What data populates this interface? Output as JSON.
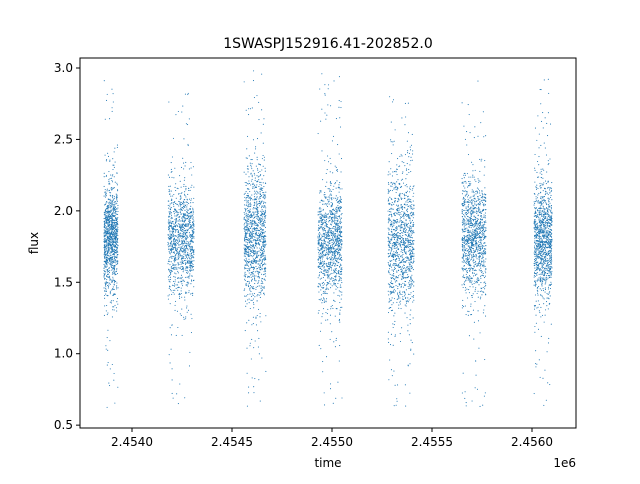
{
  "chart_data": {
    "type": "scatter",
    "title": "1SWASPJ152916.41-202852.0",
    "xlabel": "time",
    "ylabel": "flux",
    "x_offset_label": "1e6",
    "xlim": [
      2.45374,
      2.45622
    ],
    "ylim": [
      0.48,
      3.07
    ],
    "x_ticks": [
      2.454,
      2.4545,
      2.455,
      2.4555,
      2.456
    ],
    "x_tick_labels": [
      "2.4540",
      "2.4545",
      "2.4550",
      "2.4555",
      "2.4560"
    ],
    "y_ticks": [
      0.5,
      1.0,
      1.5,
      2.0,
      2.5,
      3.0
    ],
    "y_tick_labels": [
      "0.5",
      "1.0",
      "1.5",
      "2.0",
      "2.5",
      "3.0"
    ],
    "grid": false,
    "color": "#1f77b4",
    "series": [
      {
        "clusters": [
          {
            "x_range": [
              2.45386,
              2.45393
            ],
            "y_core": [
              1.5,
              2.1
            ],
            "y_range": [
              0.62,
              2.98
            ]
          },
          {
            "x_range": [
              2.45418,
              2.45431
            ],
            "y_core": [
              1.5,
              2.1
            ],
            "y_range": [
              0.65,
              2.85
            ]
          },
          {
            "x_range": [
              2.45456,
              2.45467
            ],
            "y_core": [
              1.45,
              2.2
            ],
            "y_range": [
              0.63,
              2.98
            ]
          },
          {
            "x_range": [
              2.45493,
              2.45505
            ],
            "y_core": [
              1.45,
              2.1
            ],
            "y_range": [
              0.62,
              2.97
            ]
          },
          {
            "x_range": [
              2.45528,
              2.45541
            ],
            "y_core": [
              1.4,
              2.2
            ],
            "y_range": [
              0.63,
              2.82
            ]
          },
          {
            "x_range": [
              2.45565,
              2.45577
            ],
            "y_core": [
              1.5,
              2.15
            ],
            "y_range": [
              0.62,
              2.97
            ]
          },
          {
            "x_range": [
              2.45601,
              2.4561
            ],
            "y_core": [
              1.5,
              2.1
            ],
            "y_range": [
              0.62,
              2.93
            ]
          }
        ]
      }
    ]
  }
}
